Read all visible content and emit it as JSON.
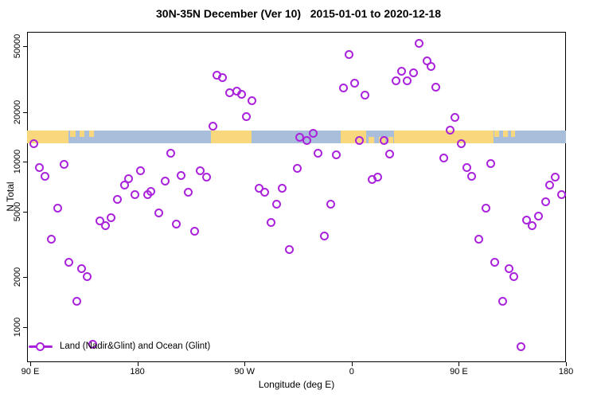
{
  "title": "30N-35N December (Ver 10)   2015-01-01 to 2020-12-18",
  "legend": {
    "label": "Land (Nadir&Glint) and Ocean (Glint)"
  },
  "colors": {
    "point": "#AA22DC",
    "land": "#F8D77D",
    "ocean": "#A9BEDA",
    "axis": "#000000",
    "background": "#FFFFFF"
  },
  "chart_data": {
    "type": "scatter",
    "title": "30N-35N December (Ver 10)   2015-01-01 to 2020-12-18",
    "xlabel": "Longitude (deg E)",
    "ylabel": "N Total",
    "x_axis": {
      "unit": "degrees eastward along axis starting at 90E (axis wraps past 180 through 90W and 0 back to 180)",
      "range": [
        -2.7,
        450
      ],
      "ticks": [
        0,
        90,
        180,
        270,
        360,
        450
      ],
      "tick_labels": [
        "90 E",
        "180",
        "90 W",
        "0",
        "90 E",
        "180"
      ]
    },
    "y_axis": {
      "scale": "log10",
      "range": [
        614,
        61000
      ],
      "ticks": [
        1000,
        2000,
        5000,
        10000,
        20000,
        50000
      ],
      "tick_labels": [
        "1000",
        "2000",
        "5000",
        "10000",
        "20000",
        "50000"
      ]
    },
    "map_strip": {
      "description": "land(yellow)/ocean(blue) banner for the 30N-35N band drawn across the plot",
      "value_center": 14000,
      "land_segments": [
        [
          -2.7,
          32
        ],
        [
          152,
          186
        ],
        [
          261,
          282
        ],
        [
          305.5,
          389
        ]
      ],
      "land_speckles_top": [
        [
          33.4,
          38
        ],
        [
          41.5,
          45.5
        ],
        [
          49.5,
          53.5
        ],
        [
          390,
          394
        ],
        [
          397,
          401
        ],
        [
          404,
          407
        ]
      ],
      "land_speckles_bottom": [
        [
          284,
          289
        ],
        [
          293,
          298
        ],
        [
          301,
          305
        ]
      ]
    },
    "legend_entries": [
      "Land (Nadir&Glint) and Ocean (Glint)"
    ],
    "points": [
      [
        3.3,
        12900
      ],
      [
        8,
        9180
      ],
      [
        12.7,
        8120
      ],
      [
        28.7,
        9590
      ],
      [
        23.4,
        5270
      ],
      [
        18,
        3420
      ],
      [
        32.1,
        2480
      ],
      [
        42.8,
        2270
      ],
      [
        47.5,
        2010
      ],
      [
        38.8,
        1430
      ],
      [
        52.8,
        784
      ],
      [
        58.8,
        4370
      ],
      [
        63.5,
        4130
      ],
      [
        68.2,
        4610
      ],
      [
        73.5,
        5950
      ],
      [
        78.9,
        7190
      ],
      [
        82.9,
        7940
      ],
      [
        87.6,
        6300
      ],
      [
        92.9,
        8780
      ],
      [
        98.3,
        6300
      ],
      [
        101.6,
        6580
      ],
      [
        108.3,
        4930
      ],
      [
        113.6,
        7600
      ],
      [
        118.3,
        11200
      ],
      [
        123,
        4220
      ],
      [
        127,
        8300
      ],
      [
        133,
        6510
      ],
      [
        138.4,
        3780
      ],
      [
        143,
        8780
      ],
      [
        148.4,
        8040
      ],
      [
        153.7,
        16500
      ],
      [
        156.5,
        33200
      ],
      [
        161.8,
        32100
      ],
      [
        167.8,
        26000
      ],
      [
        173.2,
        26600
      ],
      [
        177.2,
        25700
      ],
      [
        181.8,
        18700
      ],
      [
        186.5,
        23500
      ],
      [
        192.5,
        6880
      ],
      [
        197.2,
        6510
      ],
      [
        202.5,
        4270
      ],
      [
        207.2,
        5510
      ],
      [
        211.9,
        6880
      ],
      [
        217.9,
        2930
      ],
      [
        224.6,
        9080
      ],
      [
        226.6,
        14000
      ],
      [
        232.6,
        13500
      ],
      [
        238,
        14900
      ],
      [
        242,
        11200
      ],
      [
        247.3,
        3540
      ],
      [
        252.7,
        5510
      ],
      [
        257.4,
        11000
      ],
      [
        263.4,
        27800
      ],
      [
        268,
        44300
      ],
      [
        272.7,
        30000
      ],
      [
        276.7,
        13400
      ],
      [
        281.4,
        25400
      ],
      [
        287.4,
        7850
      ],
      [
        292.1,
        8040
      ],
      [
        297.5,
        13400
      ],
      [
        302.1,
        11100
      ],
      [
        307.5,
        31000
      ],
      [
        312.2,
        35100
      ],
      [
        316.8,
        30700
      ],
      [
        322.2,
        34300
      ],
      [
        326.9,
        52200
      ],
      [
        333.6,
        40500
      ],
      [
        336.9,
        37500
      ],
      [
        341,
        28400
      ],
      [
        347.6,
        10500
      ],
      [
        353,
        15600
      ],
      [
        357,
        18500
      ],
      [
        362.3,
        12900
      ],
      [
        367,
        9180
      ],
      [
        371,
        8120
      ],
      [
        377,
        3420
      ],
      [
        383,
        5270
      ],
      [
        387,
        9700
      ],
      [
        390.4,
        2480
      ],
      [
        397.1,
        1430
      ],
      [
        402.4,
        2270
      ],
      [
        406.4,
        2010
      ],
      [
        412.4,
        766
      ],
      [
        417.1,
        4420
      ],
      [
        421.8,
        4090
      ],
      [
        427.1,
        4670
      ],
      [
        433.2,
        5750
      ],
      [
        436.5,
        7190
      ],
      [
        441.2,
        8040
      ],
      [
        446.5,
        6300
      ]
    ]
  }
}
